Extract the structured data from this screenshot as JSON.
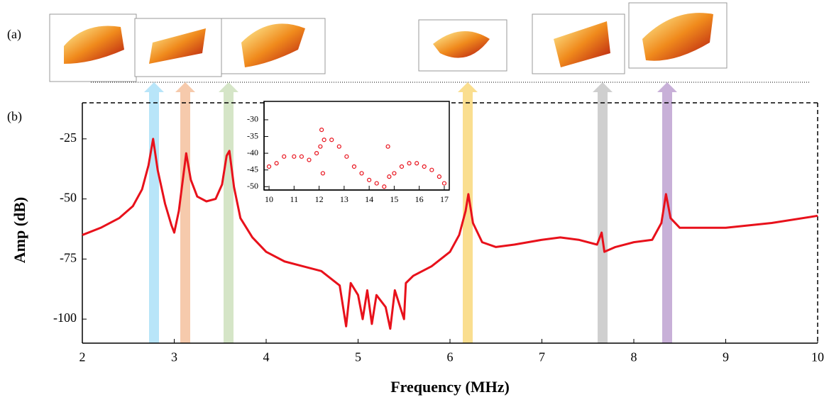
{
  "panel_labels": [
    "(a)",
    "(b)"
  ],
  "chart_data": [
    {
      "type": "line",
      "xlabel": "Frequency (MHz)",
      "ylabel": "Amp (dB)",
      "xlim": [
        2,
        10
      ],
      "xticks": [
        2,
        3,
        4,
        5,
        6,
        7,
        8,
        9,
        10
      ],
      "ylim": [
        -110,
        -10
      ],
      "yticks": [
        -25,
        -50,
        -75,
        -100
      ],
      "series": [
        {
          "color": "#e8111b",
          "x": [
            2.0,
            2.2,
            2.4,
            2.55,
            2.65,
            2.72,
            2.77,
            2.82,
            2.9,
            2.97,
            3.0,
            3.05,
            3.1,
            3.13,
            3.18,
            3.25,
            3.35,
            3.45,
            3.52,
            3.57,
            3.6,
            3.65,
            3.72,
            3.85,
            4.0,
            4.2,
            4.4,
            4.6,
            4.8,
            4.87,
            4.92,
            5.0,
            5.05,
            5.1,
            5.15,
            5.2,
            5.3,
            5.35,
            5.4,
            5.5,
            5.52,
            5.6,
            5.8,
            6.0,
            6.1,
            6.17,
            6.2,
            6.25,
            6.35,
            6.5,
            6.7,
            7.0,
            7.2,
            7.4,
            7.6,
            7.65,
            7.68,
            7.8,
            8.0,
            8.2,
            8.3,
            8.35,
            8.4,
            8.5,
            8.8,
            9.0,
            9.5,
            10.0
          ],
          "values": [
            -65,
            -62,
            -58,
            -53,
            -46,
            -36,
            -25,
            -38,
            -52,
            -61,
            -64,
            -55,
            -40,
            -31,
            -42,
            -49,
            -51,
            -50,
            -44,
            -32,
            -30,
            -45,
            -58,
            -66,
            -72,
            -76,
            -78,
            -80,
            -86,
            -103,
            -85,
            -90,
            -100,
            -88,
            -102,
            -90,
            -95,
            -104,
            -88,
            -100,
            -85,
            -82,
            -78,
            -72,
            -65,
            -55,
            -48,
            -60,
            -68,
            -70,
            -69,
            -67,
            -66,
            -67,
            -69,
            -64,
            -72,
            -70,
            -68,
            -67,
            -60,
            -48,
            -58,
            -62,
            -62,
            -62,
            -60,
            -57
          ]
        }
      ]
    },
    {
      "type": "scatter",
      "xlim": [
        9.8,
        17.2
      ],
      "xticks": [
        10,
        11,
        12,
        13,
        14,
        15,
        16,
        17
      ],
      "ylim": [
        -51,
        -24.5
      ],
      "yticks": [
        -30,
        -35,
        -40,
        -45,
        -50
      ],
      "series": [
        {
          "color": "#e8111b",
          "x": [
            10.0,
            10.3,
            10.6,
            11.0,
            11.3,
            11.6,
            11.9,
            12.05,
            12.1,
            12.15,
            12.2,
            12.5,
            12.8,
            13.1,
            13.4,
            13.7,
            14.0,
            14.3,
            14.6,
            14.75,
            14.8,
            15.0,
            15.3,
            15.6,
            15.9,
            16.2,
            16.5,
            16.8,
            17.0
          ],
          "values": [
            -44,
            -43,
            -41,
            -41,
            -41,
            -42,
            -40,
            -38,
            -33,
            -46,
            -36,
            -36,
            -38,
            -41,
            -44,
            -46,
            -48,
            -49,
            -50,
            -38,
            -47,
            -46,
            -44,
            -43,
            -43,
            -44,
            -45,
            -47,
            -49
          ]
        }
      ]
    }
  ]
}
